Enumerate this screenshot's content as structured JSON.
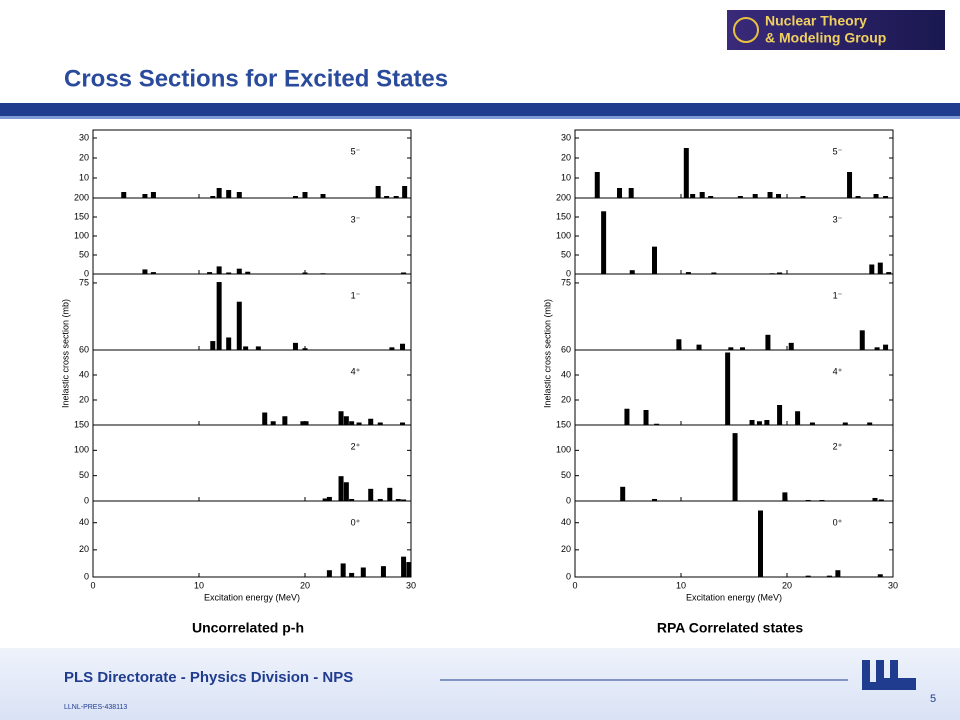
{
  "slide": {
    "title": "Cross Sections for Excited States",
    "logo": [
      "Nuclear Theory",
      "& Modeling Group"
    ],
    "footer": "PLS Directorate - Physics Division - NPS",
    "doc_id": "LLNL-PRES-438113",
    "page": "5"
  },
  "chart_data": [
    {
      "type": "bar",
      "caption": "Uncorrelated p-h",
      "xlabel": "Excitation energy (MeV)",
      "ylabel": "Inelastic cross section (mb)",
      "xlim": [
        0,
        30
      ],
      "xticks": [
        0,
        10,
        20,
        30
      ],
      "color": "#000000",
      "panels": [
        {
          "label": "5⁻",
          "ylim": [
            0,
            34
          ],
          "yticks": [
            10,
            20,
            30
          ],
          "x": [
            2.9,
            4.9,
            5.7,
            11.3,
            11.9,
            12.8,
            13.8,
            19.1,
            20.0,
            21.7,
            26.9,
            27.7,
            28.6,
            29.4
          ],
          "values": [
            3,
            2,
            3,
            1,
            5,
            4,
            3,
            1,
            3,
            2,
            6,
            1,
            1,
            6
          ]
        },
        {
          "label": "3⁻",
          "ylim": [
            0,
            200
          ],
          "yticks": [
            0,
            50,
            100,
            150,
            200
          ],
          "x": [
            4.9,
            5.7,
            11.0,
            11.9,
            12.8,
            13.8,
            14.6,
            20.0,
            21.7,
            29.3
          ],
          "values": [
            12,
            5,
            5,
            20,
            4,
            14,
            6,
            4,
            2,
            4
          ]
        },
        {
          "label": "1⁻",
          "ylim": [
            0,
            85
          ],
          "yticks": [
            75
          ],
          "x": [
            11.3,
            11.9,
            12.8,
            13.8,
            14.4,
            15.6,
            19.1,
            20.0,
            28.2,
            29.2
          ],
          "values": [
            10,
            76,
            14,
            54,
            4,
            4,
            8,
            2,
            3,
            7
          ]
        },
        {
          "label": "4⁺",
          "ylim": [
            0,
            60
          ],
          "yticks": [
            20,
            40,
            60
          ],
          "x": [
            16.2,
            17.0,
            18.1,
            19.8,
            20.1,
            23.4,
            23.9,
            24.4,
            25.1,
            26.2,
            27.1,
            29.2
          ],
          "values": [
            10,
            3,
            7,
            3,
            3,
            11,
            7,
            3,
            2,
            5,
            2,
            2
          ]
        },
        {
          "label": "2⁺",
          "ylim": [
            0,
            150
          ],
          "yticks": [
            0,
            50,
            100,
            150
          ],
          "x": [
            21.9,
            22.3,
            23.4,
            23.9,
            24.4,
            26.2,
            27.1,
            28.0,
            28.8,
            29.3
          ],
          "values": [
            5,
            8,
            49,
            37,
            4,
            24,
            4,
            26,
            4,
            3
          ]
        },
        {
          "label": "0⁺",
          "ylim": [
            0,
            56
          ],
          "yticks": [
            0,
            20,
            40
          ],
          "x": [
            22.3,
            23.6,
            24.4,
            25.5,
            27.4,
            29.3,
            29.8
          ],
          "values": [
            5,
            10,
            3,
            7,
            8,
            15,
            11
          ]
        }
      ]
    },
    {
      "type": "bar",
      "caption": "RPA Correlated states",
      "xlabel": "Excitation energy (MeV)",
      "ylabel": "Inelastic cross section (mb)",
      "xlim": [
        0,
        30
      ],
      "xticks": [
        0,
        10,
        20,
        30
      ],
      "color": "#000000",
      "panels": [
        {
          "label": "5⁻",
          "ylim": [
            0,
            34
          ],
          "yticks": [
            10,
            20,
            30
          ],
          "x": [
            2.1,
            4.2,
            5.3,
            10.5,
            11.1,
            12.0,
            12.8,
            15.6,
            17.0,
            18.4,
            19.2,
            21.5,
            25.9,
            26.7,
            28.4,
            29.3
          ],
          "values": [
            13,
            5,
            5,
            25,
            2,
            3,
            1,
            1,
            2,
            3,
            2,
            1,
            13,
            1,
            2,
            1
          ]
        },
        {
          "label": "3⁻",
          "ylim": [
            0,
            200
          ],
          "yticks": [
            0,
            50,
            100,
            150,
            200
          ],
          "x": [
            2.7,
            5.4,
            7.5,
            10.7,
            13.1,
            18.6,
            19.3,
            28.0,
            28.8,
            29.6
          ],
          "values": [
            165,
            10,
            72,
            5,
            4,
            2,
            4,
            25,
            30,
            5
          ]
        },
        {
          "label": "1⁻",
          "ylim": [
            0,
            85
          ],
          "yticks": [
            75
          ],
          "x": [
            9.8,
            11.7,
            14.7,
            15.8,
            18.2,
            20.4,
            27.1,
            28.5,
            29.3
          ],
          "values": [
            12,
            6,
            3,
            3,
            17,
            8,
            22,
            3,
            6
          ]
        },
        {
          "label": "4⁺",
          "ylim": [
            0,
            60
          ],
          "yticks": [
            20,
            40,
            60
          ],
          "x": [
            4.9,
            6.7,
            7.7,
            14.4,
            16.7,
            17.4,
            18.1,
            19.3,
            21.0,
            22.4,
            25.5,
            27.8
          ],
          "values": [
            13,
            12,
            1,
            58,
            4,
            3,
            4,
            16,
            11,
            2,
            2,
            2
          ]
        },
        {
          "label": "2⁺",
          "ylim": [
            0,
            150
          ],
          "yticks": [
            0,
            50,
            100,
            150
          ],
          "x": [
            4.5,
            7.5,
            15.1,
            19.8,
            22.0,
            23.3,
            28.3,
            28.9
          ],
          "values": [
            28,
            4,
            134,
            17,
            2,
            2,
            6,
            3
          ]
        },
        {
          "label": "0⁺",
          "ylim": [
            0,
            56
          ],
          "yticks": [
            0,
            20,
            40
          ],
          "x": [
            17.5,
            22.0,
            24.0,
            24.8,
            28.8
          ],
          "values": [
            49,
            1,
            1,
            5,
            2
          ]
        }
      ]
    }
  ]
}
